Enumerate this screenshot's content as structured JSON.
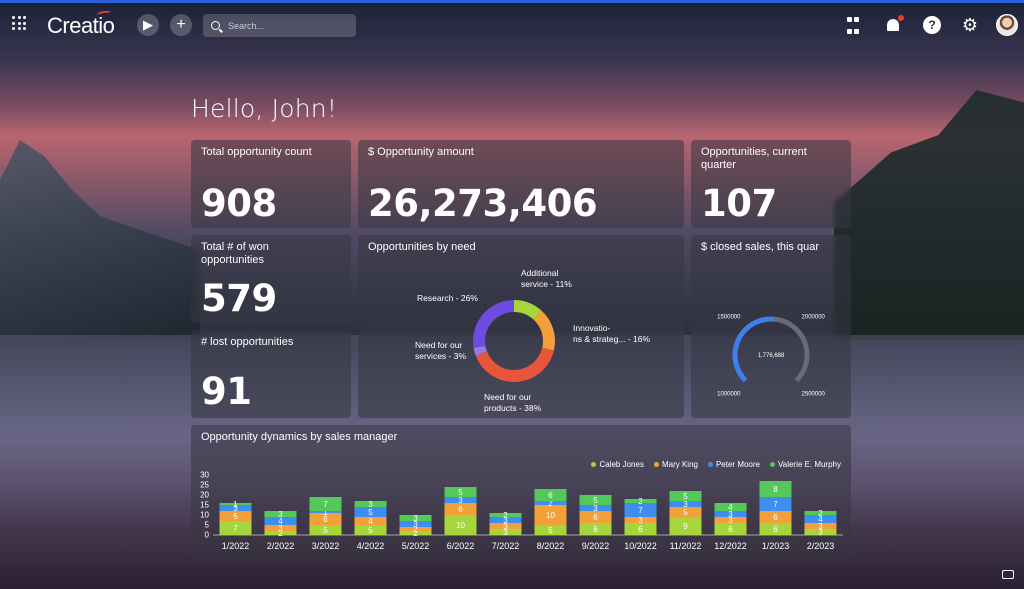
{
  "app": {
    "name": "Creatio"
  },
  "search": {
    "placeholder": "Search..."
  },
  "greeting": "Hello, John!",
  "cards": {
    "total_count": {
      "title": "Total opportunity count",
      "value": "908"
    },
    "amount": {
      "title": "$ Opportunity amount",
      "value": "26,273,406"
    },
    "current_quarter": {
      "title": "Opportunities, current quarter",
      "value": "107"
    },
    "won": {
      "title": "Total # of won opportunities",
      "value": "579"
    },
    "lost": {
      "title": "# lost opportunities",
      "value": "91"
    },
    "by_need": {
      "title": "Opportunities by need"
    },
    "closed_sales": {
      "title": "$ closed sales, this quar"
    },
    "dynamics": {
      "title": "Opportunity dynamics by sales manager"
    }
  },
  "gauge": {
    "value": 1776688,
    "value_label": "1,776,688",
    "min": 1000000,
    "max": 2500000,
    "tick_labels": [
      "1000000",
      "1500000",
      "2000000",
      "2500000"
    ],
    "colors": {
      "fill": "#3d7ef0",
      "track": "#6b6b78"
    }
  },
  "chart_data": [
    {
      "type": "pie",
      "title": "Opportunities by need",
      "labels": [
        "Additional service",
        "Innovations & strateg...",
        "Need for our products",
        "Need for our services",
        "Research"
      ],
      "values": [
        11,
        16,
        38,
        3,
        26
      ],
      "label_text": {
        "additional": [
          "Additional",
          "service - 11%"
        ],
        "innovations": [
          "Innovatio-",
          "ns & strateg... - 16%"
        ],
        "products": [
          "Need for our",
          "products - 38%"
        ],
        "services": [
          "Need for our",
          "services - 3%"
        ],
        "research": [
          "Research - 26%"
        ]
      },
      "colors": [
        "#a7d53c",
        "#f2a13a",
        "#e9553a",
        "#8f7ee6",
        "#6f4ce0"
      ]
    },
    {
      "type": "bar",
      "stacked": true,
      "title": "Opportunity dynamics by sales manager",
      "categories": [
        "1/2022",
        "2/2022",
        "3/2022",
        "4/2022",
        "5/2022",
        "6/2022",
        "7/2022",
        "8/2022",
        "9/2022",
        "10/2022",
        "11/2022",
        "12/2022",
        "1/2023",
        "2/2023"
      ],
      "ylim": [
        0,
        30
      ],
      "yticks": [
        0,
        5,
        10,
        15,
        20,
        25,
        30
      ],
      "legend_position": "top-right",
      "series": [
        {
          "name": "Caleb Jones",
          "color": "#a7d53c",
          "values": [
            7,
            2,
            5,
            5,
            2,
            10,
            3,
            5,
            6,
            6,
            9,
            6,
            6,
            3
          ]
        },
        {
          "name": "Mary King",
          "color": "#f2a13a",
          "values": [
            5,
            3,
            6,
            4,
            2,
            6,
            3,
            10,
            6,
            3,
            5,
            3,
            6,
            3
          ]
        },
        {
          "name": "Peter Moore",
          "color": "#3d8ef0",
          "values": [
            3,
            4,
            1,
            5,
            3,
            3,
            3,
            2,
            3,
            7,
            3,
            3,
            7,
            4
          ]
        },
        {
          "name": "Valerie E. Murphy",
          "color": "#55c85a",
          "values": [
            1,
            3,
            7,
            3,
            3,
            5,
            2,
            6,
            5,
            2,
            5,
            4,
            8,
            2
          ]
        }
      ]
    }
  ]
}
